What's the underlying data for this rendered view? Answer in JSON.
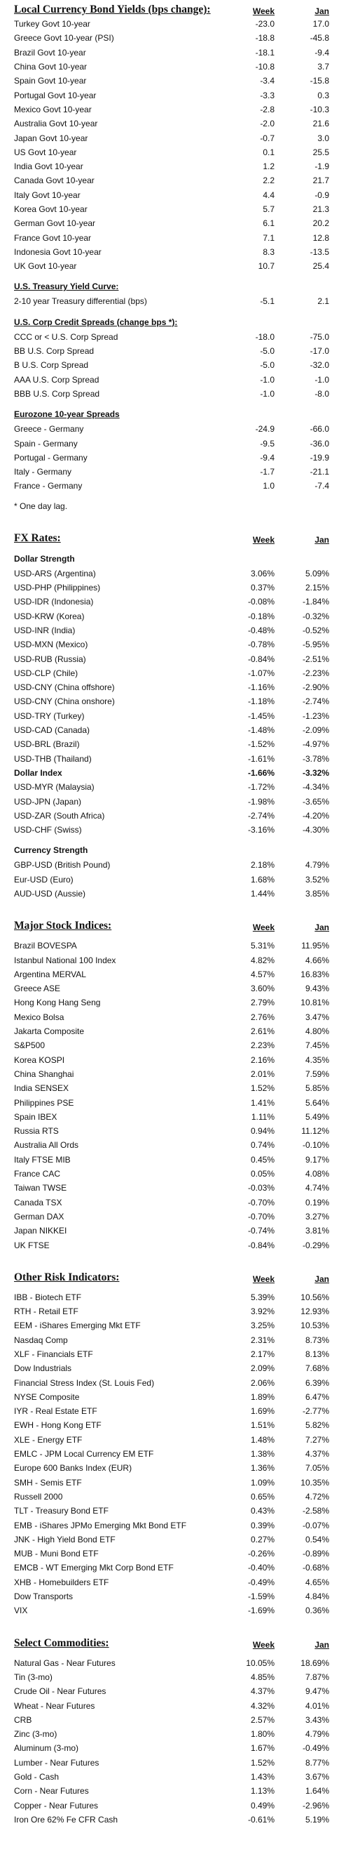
{
  "local_yields": {
    "title": "Local Currency Bond Yields (bps change):",
    "week_label": "Week",
    "jan_label": "Jan",
    "rows": [
      {
        "label": "Turkey Govt 10-year",
        "week": "-23.0",
        "jan": "17.0"
      },
      {
        "label": "Greece Govt 10-year (PSI)",
        "week": "-18.8",
        "jan": "-45.8"
      },
      {
        "label": "Brazil Govt 10-year",
        "week": "-18.1",
        "jan": "-9.4"
      },
      {
        "label": "China Govt 10-year",
        "week": "-10.8",
        "jan": "3.7"
      },
      {
        "label": "Spain Govt 10-year",
        "week": "-3.4",
        "jan": "-15.8"
      },
      {
        "label": "Portugal Govt 10-year",
        "week": "-3.3",
        "jan": "0.3"
      },
      {
        "label": "Mexico Govt 10-year",
        "week": "-2.8",
        "jan": "-10.3"
      },
      {
        "label": "Australia Govt 10-year",
        "week": "-2.0",
        "jan": "21.6"
      },
      {
        "label": "Japan Govt 10-year",
        "week": "-0.7",
        "jan": "3.0"
      },
      {
        "label": "US Govt 10-year",
        "week": "0.1",
        "jan": "25.5"
      },
      {
        "label": "India Govt 10-year",
        "week": "1.2",
        "jan": "-1.9"
      },
      {
        "label": "Canada Govt 10-year",
        "week": "2.2",
        "jan": "21.7"
      },
      {
        "label": "Italy Govt 10-year",
        "week": "4.4",
        "jan": "-0.9"
      },
      {
        "label": "Korea Govt 10-year",
        "week": "5.7",
        "jan": "21.3"
      },
      {
        "label": "German Govt 10-year",
        "week": "6.1",
        "jan": "20.2"
      },
      {
        "label": "France Govt 10-year",
        "week": "7.1",
        "jan": "12.8"
      },
      {
        "label": "Indonesia Govt 10-year",
        "week": "8.3",
        "jan": "-13.5"
      },
      {
        "label": "UK Govt 10-year",
        "week": "10.7",
        "jan": "25.4"
      }
    ]
  },
  "treasury_curve": {
    "title": "U.S. Treasury Yield Curve:",
    "rows": [
      {
        "label": "2-10 year Treasury differential (bps)",
        "week": "-5.1",
        "jan": "2.1"
      }
    ]
  },
  "corp_spreads": {
    "title": "U.S. Corp Credit Spreads (change bps *):",
    "rows": [
      {
        "label": "CCC or < U.S. Corp Spread",
        "week": "-18.0",
        "jan": "-75.0"
      },
      {
        "label": "BB U.S. Corp Spread",
        "week": "-5.0",
        "jan": "-17.0"
      },
      {
        "label": "B U.S. Corp Spread",
        "week": "-5.0",
        "jan": "-32.0"
      },
      {
        "label": "AAA U.S. Corp Spread",
        "week": "-1.0",
        "jan": "-1.0"
      },
      {
        "label": "BBB U.S. Corp Spread",
        "week": "-1.0",
        "jan": "-8.0"
      }
    ]
  },
  "eurozone": {
    "title": "Eurozone 10-year Spreads",
    "rows": [
      {
        "label": "Greece - Germany",
        "week": "-24.9",
        "jan": "-66.0"
      },
      {
        "label": "Spain - Germany",
        "week": "-9.5",
        "jan": "-36.0"
      },
      {
        "label": "Portugal - Germany",
        "week": "-9.4",
        "jan": "-19.9"
      },
      {
        "label": "Italy - Germany",
        "week": "-1.7",
        "jan": "-21.1"
      },
      {
        "label": "France - Germany",
        "week": "1.0",
        "jan": "-7.4"
      }
    ],
    "note": "* One day lag."
  },
  "fx": {
    "title": "FX Rates:",
    "week_label": "Week",
    "jan_label": "Jan",
    "dollar_strength_label": "Dollar Strength",
    "dollar_rows": [
      {
        "label": "USD-ARS (Argentina)",
        "week": "3.06%",
        "jan": "5.09%"
      },
      {
        "label": "USD-PHP (Philippines)",
        "week": "0.37%",
        "jan": "2.15%"
      },
      {
        "label": "USD-IDR (Indonesia)",
        "week": "-0.08%",
        "jan": "-1.84%"
      },
      {
        "label": "USD-KRW (Korea)",
        "week": "-0.18%",
        "jan": "-0.32%"
      },
      {
        "label": "USD-INR (India)",
        "week": "-0.48%",
        "jan": "-0.52%"
      },
      {
        "label": "USD-MXN (Mexico)",
        "week": "-0.78%",
        "jan": "-5.95%"
      },
      {
        "label": "USD-RUB (Russia)",
        "week": "-0.84%",
        "jan": "-2.51%"
      },
      {
        "label": "USD-CLP (Chile)",
        "week": "-1.07%",
        "jan": "-2.23%"
      },
      {
        "label": "USD-CNY (China offshore)",
        "week": "-1.16%",
        "jan": "-2.90%"
      },
      {
        "label": "USD-CNY (China onshore)",
        "week": "-1.18%",
        "jan": "-2.74%"
      },
      {
        "label": "USD-TRY (Turkey)",
        "week": "-1.45%",
        "jan": "-1.23%"
      },
      {
        "label": "USD-CAD (Canada)",
        "week": "-1.48%",
        "jan": "-2.09%"
      },
      {
        "label": "USD-BRL (Brazil)",
        "week": "-1.52%",
        "jan": "-4.97%"
      },
      {
        "label": "USD-THB (Thailand)",
        "week": "-1.61%",
        "jan": "-3.78%"
      },
      {
        "label": "Dollar Index",
        "week": "-1.66%",
        "jan": "-3.32%",
        "bold": true
      },
      {
        "label": "USD-MYR (Malaysia)",
        "week": "-1.72%",
        "jan": "-4.34%"
      },
      {
        "label": "USD-JPN (Japan)",
        "week": "-1.98%",
        "jan": "-3.65%"
      },
      {
        "label": "USD-ZAR (South Africa)",
        "week": "-2.74%",
        "jan": "-4.20%"
      },
      {
        "label": "USD-CHF (Swiss)",
        "week": "-3.16%",
        "jan": "-4.30%"
      }
    ],
    "currency_strength_label": "Currency Strength",
    "currency_rows": [
      {
        "label": "GBP-USD (British Pound)",
        "week": "2.18%",
        "jan": "4.79%"
      },
      {
        "label": "Eur-USD (Euro)",
        "week": "1.68%",
        "jan": "3.52%"
      },
      {
        "label": "AUD-USD (Aussie)",
        "week": "1.44%",
        "jan": "3.85%"
      }
    ]
  },
  "stocks": {
    "title": "Major Stock Indices:",
    "week_label": "Week",
    "jan_label": "Jan",
    "rows": [
      {
        "label": "Brazil BOVESPA",
        "week": "5.31%",
        "jan": "11.95%"
      },
      {
        "label": "Istanbul National 100 Index",
        "week": "4.82%",
        "jan": "4.66%"
      },
      {
        "label": "Argentina MERVAL",
        "week": "4.57%",
        "jan": "16.83%"
      },
      {
        "label": "Greece ASE",
        "week": "3.60%",
        "jan": "9.43%"
      },
      {
        "label": "Hong Kong Hang Seng",
        "week": "2.79%",
        "jan": "10.81%"
      },
      {
        "label": "Mexico Bolsa",
        "week": "2.76%",
        "jan": "3.47%"
      },
      {
        "label": "Jakarta Composite",
        "week": "2.61%",
        "jan": "4.80%"
      },
      {
        "label": "S&P500",
        "week": "2.23%",
        "jan": "7.45%"
      },
      {
        "label": "Korea KOSPI",
        "week": "2.16%",
        "jan": "4.35%"
      },
      {
        "label": "China Shanghai",
        "week": "2.01%",
        "jan": "7.59%"
      },
      {
        "label": "India SENSEX",
        "week": "1.52%",
        "jan": "5.85%"
      },
      {
        "label": "Philippines PSE",
        "week": "1.41%",
        "jan": "5.64%"
      },
      {
        "label": "Spain IBEX",
        "week": "1.11%",
        "jan": "5.49%"
      },
      {
        "label": "Russia RTS",
        "week": "0.94%",
        "jan": "11.12%"
      },
      {
        "label": "Australia All Ords",
        "week": "0.74%",
        "jan": "-0.10%"
      },
      {
        "label": "Italy FTSE MIB",
        "week": "0.45%",
        "jan": "9.17%"
      },
      {
        "label": "France CAC",
        "week": "0.05%",
        "jan": "4.08%"
      },
      {
        "label": "Taiwan TWSE",
        "week": "-0.03%",
        "jan": "4.74%"
      },
      {
        "label": "Canada TSX",
        "week": "-0.70%",
        "jan": "0.19%"
      },
      {
        "label": "German DAX",
        "week": "-0.70%",
        "jan": "3.27%"
      },
      {
        "label": "Japan NIKKEI",
        "week": "-0.74%",
        "jan": "3.81%"
      },
      {
        "label": "UK FTSE",
        "week": "-0.84%",
        "jan": "-0.29%"
      }
    ]
  },
  "risk": {
    "title": "Other Risk Indicators:",
    "week_label": "Week",
    "jan_label": "Jan",
    "rows": [
      {
        "label": "IBB - Biotech ETF",
        "week": "5.39%",
        "jan": "10.56%"
      },
      {
        "label": "RTH - Retail ETF",
        "week": "3.92%",
        "jan": "12.93%"
      },
      {
        "label": "EEM - iShares Emerging Mkt ETF",
        "week": "3.25%",
        "jan": "10.53%"
      },
      {
        "label": "Nasdaq Comp",
        "week": "2.31%",
        "jan": "8.73%"
      },
      {
        "label": "XLF - Financials ETF",
        "week": "2.17%",
        "jan": "8.13%"
      },
      {
        "label": "Dow Industrials",
        "week": "2.09%",
        "jan": "7.68%"
      },
      {
        "label": "Financial Stress Index (St. Louis Fed)",
        "week": "2.06%",
        "jan": "6.39%"
      },
      {
        "label": "NYSE Composite",
        "week": "1.89%",
        "jan": "6.47%"
      },
      {
        "label": "IYR - Real Estate ETF",
        "week": "1.69%",
        "jan": "-2.77%"
      },
      {
        "label": "EWH - Hong Kong ETF",
        "week": "1.51%",
        "jan": "5.82%"
      },
      {
        "label": "XLE - Energy ETF",
        "week": "1.48%",
        "jan": "7.27%"
      },
      {
        "label": "EMLC - JPM Local Currency EM ETF",
        "week": "1.38%",
        "jan": "4.37%"
      },
      {
        "label": "Europe 600 Banks Index (EUR)",
        "week": "1.36%",
        "jan": "7.05%"
      },
      {
        "label": "SMH - Semis ETF",
        "week": "1.09%",
        "jan": "10.35%"
      },
      {
        "label": "Russell 2000",
        "week": "0.65%",
        "jan": "4.72%"
      },
      {
        "label": "TLT - Treasury Bond ETF",
        "week": "0.43%",
        "jan": "-2.58%"
      },
      {
        "label": "EMB - iShares JPMo Emerging Mkt Bond ETF",
        "week": "0.39%",
        "jan": "-0.07%"
      },
      {
        "label": "JNK - High Yield Bond ETF",
        "week": "0.27%",
        "jan": "0.54%"
      },
      {
        "label": "MUB - Muni Bond ETF",
        "week": "-0.26%",
        "jan": "-0.89%"
      },
      {
        "label": "EMCB - WT Emerging Mkt Corp Bond ETF",
        "week": "-0.40%",
        "jan": "-0.68%"
      },
      {
        "label": "XHB - Homebuilders ETF",
        "week": "-0.49%",
        "jan": "4.65%"
      },
      {
        "label": "Dow Transports",
        "week": "-1.59%",
        "jan": "4.84%"
      },
      {
        "label": "VIX",
        "week": "-1.69%",
        "jan": "0.36%"
      }
    ]
  },
  "commodities": {
    "title": "Select Commodities:",
    "week_label": "Week",
    "jan_label": "Jan",
    "rows": [
      {
        "label": "Natural Gas - Near Futures",
        "week": "10.05%",
        "jan": "18.69%"
      },
      {
        "label": "Tin (3-mo)",
        "week": "4.85%",
        "jan": "7.87%"
      },
      {
        "label": "Crude Oil - Near Futures",
        "week": "4.37%",
        "jan": "9.47%"
      },
      {
        "label": "Wheat - Near Futures",
        "week": "4.32%",
        "jan": "4.01%"
      },
      {
        "label": "CRB",
        "week": "2.57%",
        "jan": "3.43%"
      },
      {
        "label": "Zinc (3-mo)",
        "week": "1.80%",
        "jan": "4.79%"
      },
      {
        "label": "Aluminum (3-mo)",
        "week": "1.67%",
        "jan": "-0.49%"
      },
      {
        "label": "Lumber - Near Futures",
        "week": "1.52%",
        "jan": "8.77%"
      },
      {
        "label": "Gold - Cash",
        "week": "1.43%",
        "jan": "3.67%"
      },
      {
        "label": "Corn - Near Futures",
        "week": "1.13%",
        "jan": "1.64%"
      },
      {
        "label": "Copper - Near Futures",
        "week": "0.49%",
        "jan": "-2.96%"
      },
      {
        "label": "Iron Ore 62% Fe CFR Cash",
        "week": "-0.61%",
        "jan": "5.19%"
      }
    ]
  }
}
